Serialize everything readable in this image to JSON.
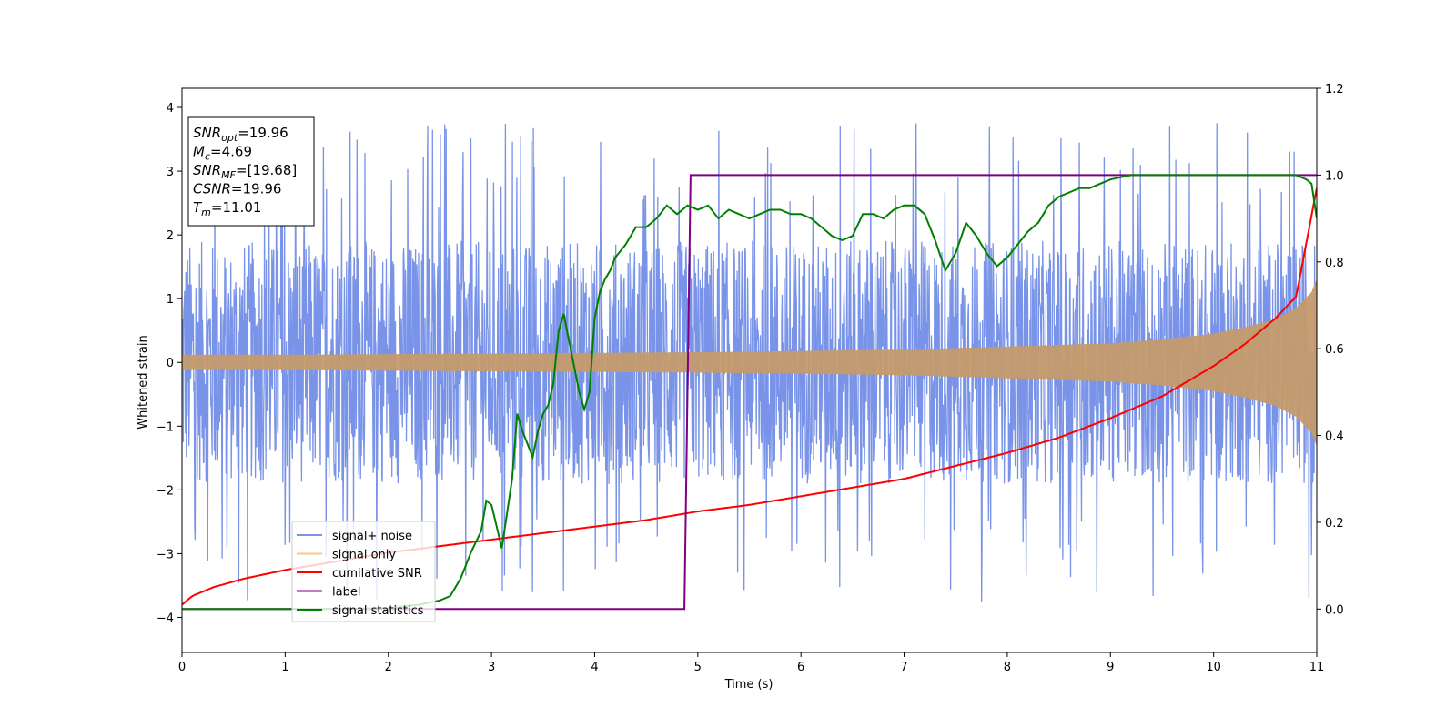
{
  "chart_data": {
    "type": "line",
    "xlabel": "Time (s)",
    "ylabel": "Whitened strain",
    "xlim": [
      0,
      11
    ],
    "ylim": [
      -4.55,
      4.3
    ],
    "y2lim": [
      -0.1,
      1.2
    ],
    "xticks": [
      "0",
      "1",
      "2",
      "3",
      "4",
      "5",
      "6",
      "7",
      "8",
      "9",
      "10",
      "11"
    ],
    "yticks": [
      "4",
      "3",
      "2",
      "1",
      "0",
      "−1",
      "−2",
      "−3",
      "−4"
    ],
    "y2ticks": [
      "1.2",
      "1.0",
      "0.8",
      "0.6",
      "0.4",
      "0.2",
      "0.0"
    ],
    "grid": false,
    "legend_position": "lower-left",
    "colors": {
      "signal_noise": "#7893e8",
      "signal_only": "#c49a6c",
      "signal_only_legend": "#ffc57f",
      "cumulative_snr": "#ff0000",
      "label": "#800080",
      "signal_statistics": "#008000"
    },
    "series": [
      {
        "name": "signal+ noise",
        "axis": "left",
        "description_points": "noise band approx ±2.5 with spikes to ±3.8"
      },
      {
        "name": "signal only",
        "axis": "left",
        "envelope": {
          "x": [
            0,
            1,
            2,
            3,
            4,
            5,
            6,
            7,
            8,
            9,
            9.5,
            10,
            10.3,
            10.6,
            10.8,
            10.95,
            11
          ],
          "amp": [
            0.12,
            0.12,
            0.13,
            0.14,
            0.15,
            0.16,
            0.18,
            0.2,
            0.25,
            0.3,
            0.36,
            0.45,
            0.55,
            0.68,
            0.85,
            1.1,
            1.3
          ]
        }
      },
      {
        "name": "cumilative SNR",
        "axis": "right",
        "x": [
          0,
          0.1,
          0.3,
          0.6,
          1,
          1.5,
          2,
          2.5,
          3,
          3.5,
          4,
          4.5,
          5,
          5.5,
          6,
          6.5,
          7,
          7.5,
          8,
          8.5,
          9,
          9.5,
          10,
          10.3,
          10.6,
          10.8,
          11
        ],
        "y": [
          0.01,
          0.03,
          0.05,
          0.07,
          0.09,
          0.11,
          0.13,
          0.145,
          0.16,
          0.175,
          0.19,
          0.205,
          0.225,
          0.24,
          0.26,
          0.28,
          0.3,
          0.33,
          0.36,
          0.395,
          0.44,
          0.49,
          0.56,
          0.61,
          0.67,
          0.72,
          0.97
        ]
      },
      {
        "name": "label",
        "axis": "right",
        "x": [
          0,
          4.87,
          4.93,
          11
        ],
        "y": [
          0,
          0,
          1,
          1
        ]
      },
      {
        "name": "signal statistics",
        "axis": "right",
        "x": [
          0,
          0.5,
          1,
          1.5,
          2,
          2.3,
          2.5,
          2.6,
          2.7,
          2.8,
          2.9,
          2.95,
          3.0,
          3.05,
          3.1,
          3.15,
          3.2,
          3.25,
          3.3,
          3.35,
          3.4,
          3.45,
          3.5,
          3.55,
          3.6,
          3.65,
          3.7,
          3.75,
          3.8,
          3.85,
          3.9,
          3.95,
          4.0,
          4.05,
          4.1,
          4.15,
          4.2,
          4.3,
          4.4,
          4.5,
          4.6,
          4.7,
          4.8,
          4.9,
          5.0,
          5.1,
          5.2,
          5.3,
          5.4,
          5.5,
          5.6,
          5.7,
          5.8,
          5.9,
          6.0,
          6.1,
          6.2,
          6.3,
          6.4,
          6.5,
          6.6,
          6.7,
          6.8,
          6.9,
          7.0,
          7.1,
          7.2,
          7.3,
          7.4,
          7.5,
          7.6,
          7.7,
          7.8,
          7.9,
          8.0,
          8.1,
          8.2,
          8.3,
          8.4,
          8.5,
          8.6,
          8.7,
          8.8,
          8.9,
          9.0,
          9.2,
          9.5,
          10,
          10.5,
          10.8,
          10.9,
          10.95,
          11
        ],
        "y": [
          0,
          0,
          0,
          0,
          0.002,
          0.01,
          0.02,
          0.03,
          0.07,
          0.13,
          0.18,
          0.25,
          0.24,
          0.19,
          0.14,
          0.22,
          0.3,
          0.45,
          0.41,
          0.38,
          0.35,
          0.41,
          0.45,
          0.47,
          0.52,
          0.64,
          0.68,
          0.62,
          0.56,
          0.5,
          0.46,
          0.5,
          0.67,
          0.73,
          0.76,
          0.78,
          0.81,
          0.84,
          0.88,
          0.88,
          0.9,
          0.93,
          0.91,
          0.93,
          0.92,
          0.93,
          0.9,
          0.92,
          0.91,
          0.9,
          0.91,
          0.92,
          0.92,
          0.91,
          0.91,
          0.9,
          0.88,
          0.86,
          0.85,
          0.86,
          0.91,
          0.91,
          0.9,
          0.92,
          0.93,
          0.93,
          0.91,
          0.85,
          0.78,
          0.82,
          0.89,
          0.86,
          0.82,
          0.79,
          0.81,
          0.84,
          0.87,
          0.89,
          0.93,
          0.95,
          0.96,
          0.97,
          0.97,
          0.98,
          0.99,
          1.0,
          1.0,
          1.0,
          1.0,
          1.0,
          0.99,
          0.98,
          0.9
        ]
      }
    ],
    "legend": [
      "signal+ noise",
      "signal only",
      "cumilative SNR",
      "label",
      "signal statistics"
    ],
    "info_box": [
      {
        "main": "SNR",
        "sub": "opt",
        "rest": "=19.96"
      },
      {
        "main": "M",
        "sub": "c",
        "rest": "=4.69"
      },
      {
        "main": "SNR",
        "sub": "MF",
        "rest": "=[19.68]"
      },
      {
        "main": "CSNR",
        "sub": "",
        "rest": "=19.96"
      },
      {
        "main": "T",
        "sub": "m",
        "rest": "=11.01"
      }
    ]
  }
}
